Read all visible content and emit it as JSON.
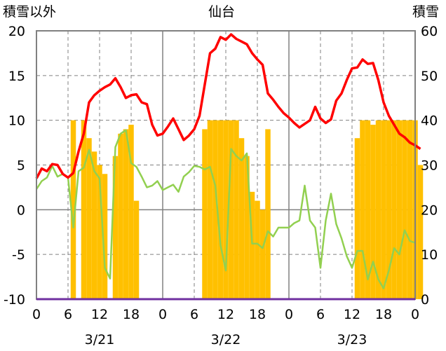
{
  "chart_data": {
    "type": "bar+line",
    "title": "仙台",
    "left_axis_label": "積雪以外",
    "right_axis_label": "積雪",
    "left_ylim": [
      -10,
      20
    ],
    "left_yticks": [
      "20",
      "15",
      "10",
      "5",
      "0",
      "-5",
      "-10"
    ],
    "right_ylim": [
      0,
      60
    ],
    "right_yticks": [
      "60",
      "50",
      "40",
      "30",
      "20",
      "10",
      "0"
    ],
    "x_hours": [
      0,
      72
    ],
    "x_tick_labels": [
      "0",
      "6",
      "12",
      "18",
      "0",
      "6",
      "12",
      "18",
      "0",
      "6",
      "12",
      "18",
      "0"
    ],
    "date_labels": [
      "3/21",
      "3/22",
      "3/23"
    ],
    "grid": true,
    "colors": {
      "snow_bar": "#FFC000",
      "temperature": "#FF0000",
      "green_series": "#92D050",
      "baseline": "#7030A0",
      "grid": "#808080"
    },
    "snow_depth": [
      0,
      0,
      0,
      0,
      0,
      0,
      0,
      40,
      0,
      40,
      36,
      33,
      30,
      28,
      0,
      32,
      37,
      38,
      39,
      22,
      0,
      0,
      0,
      0,
      0,
      0,
      0,
      0,
      0,
      0,
      0,
      0,
      38,
      40,
      40,
      40,
      40,
      40,
      40,
      36,
      32,
      24,
      22,
      20,
      38,
      0,
      0,
      0,
      0,
      0,
      0,
      0,
      0,
      0,
      0,
      0,
      0,
      0,
      0,
      0,
      0,
      36,
      40,
      40,
      39,
      40,
      40,
      40,
      40,
      40,
      40,
      40,
      40,
      30
    ],
    "temperature": [
      3.5,
      4.6,
      4.3,
      5.1,
      5.0,
      4.0,
      3.6,
      4.1,
      6.5,
      8.5,
      12.0,
      12.8,
      13.3,
      13.7,
      14.0,
      14.7,
      13.7,
      12.5,
      12.8,
      12.9,
      12.0,
      11.8,
      9.5,
      8.3,
      8.5,
      9.3,
      10.2,
      9.0,
      7.8,
      8.3,
      9.0,
      10.5,
      14.0,
      17.5,
      18.0,
      19.3,
      19.0,
      19.6,
      19.1,
      18.8,
      18.5,
      17.5,
      16.8,
      16.2,
      13.0,
      12.3,
      11.5,
      10.8,
      10.3,
      9.7,
      9.2,
      9.6,
      10.0,
      11.5,
      10.2,
      9.7,
      10.1,
      12.2,
      13.0,
      14.5,
      15.8,
      15.9,
      16.8,
      16.3,
      16.4,
      14.5,
      12.0,
      10.5,
      9.5,
      8.5,
      8.1,
      7.5,
      7.2,
      6.8
    ],
    "green_series": [
      2.3,
      3.2,
      3.6,
      4.9,
      3.7,
      4.0,
      3.6,
      -2.0,
      4.3,
      4.7,
      6.7,
      4.3,
      3.5,
      -6.5,
      -7.7,
      7.0,
      8.5,
      8.9,
      5.2,
      4.8,
      3.7,
      2.5,
      2.7,
      3.2,
      2.2,
      2.5,
      2.8,
      2.0,
      3.7,
      4.2,
      4.9,
      4.8,
      4.5,
      4.8,
      2.7,
      -4.0,
      -6.8,
      6.8,
      6.0,
      5.5,
      6.3,
      -3.8,
      -3.8,
      -4.3,
      -2.4,
      -3.0,
      -2.0,
      -2.0,
      -2.0,
      -1.5,
      -1.2,
      2.7,
      -1.2,
      -2.0,
      -6.5,
      -1.2,
      1.8,
      -1.6,
      -3.2,
      -5.2,
      -6.5,
      -4.6,
      -4.6,
      -7.8,
      -5.8,
      -7.8,
      -8.8,
      -6.8,
      -4.3,
      -5.0,
      -2.3,
      -3.5,
      -3.7
    ]
  }
}
